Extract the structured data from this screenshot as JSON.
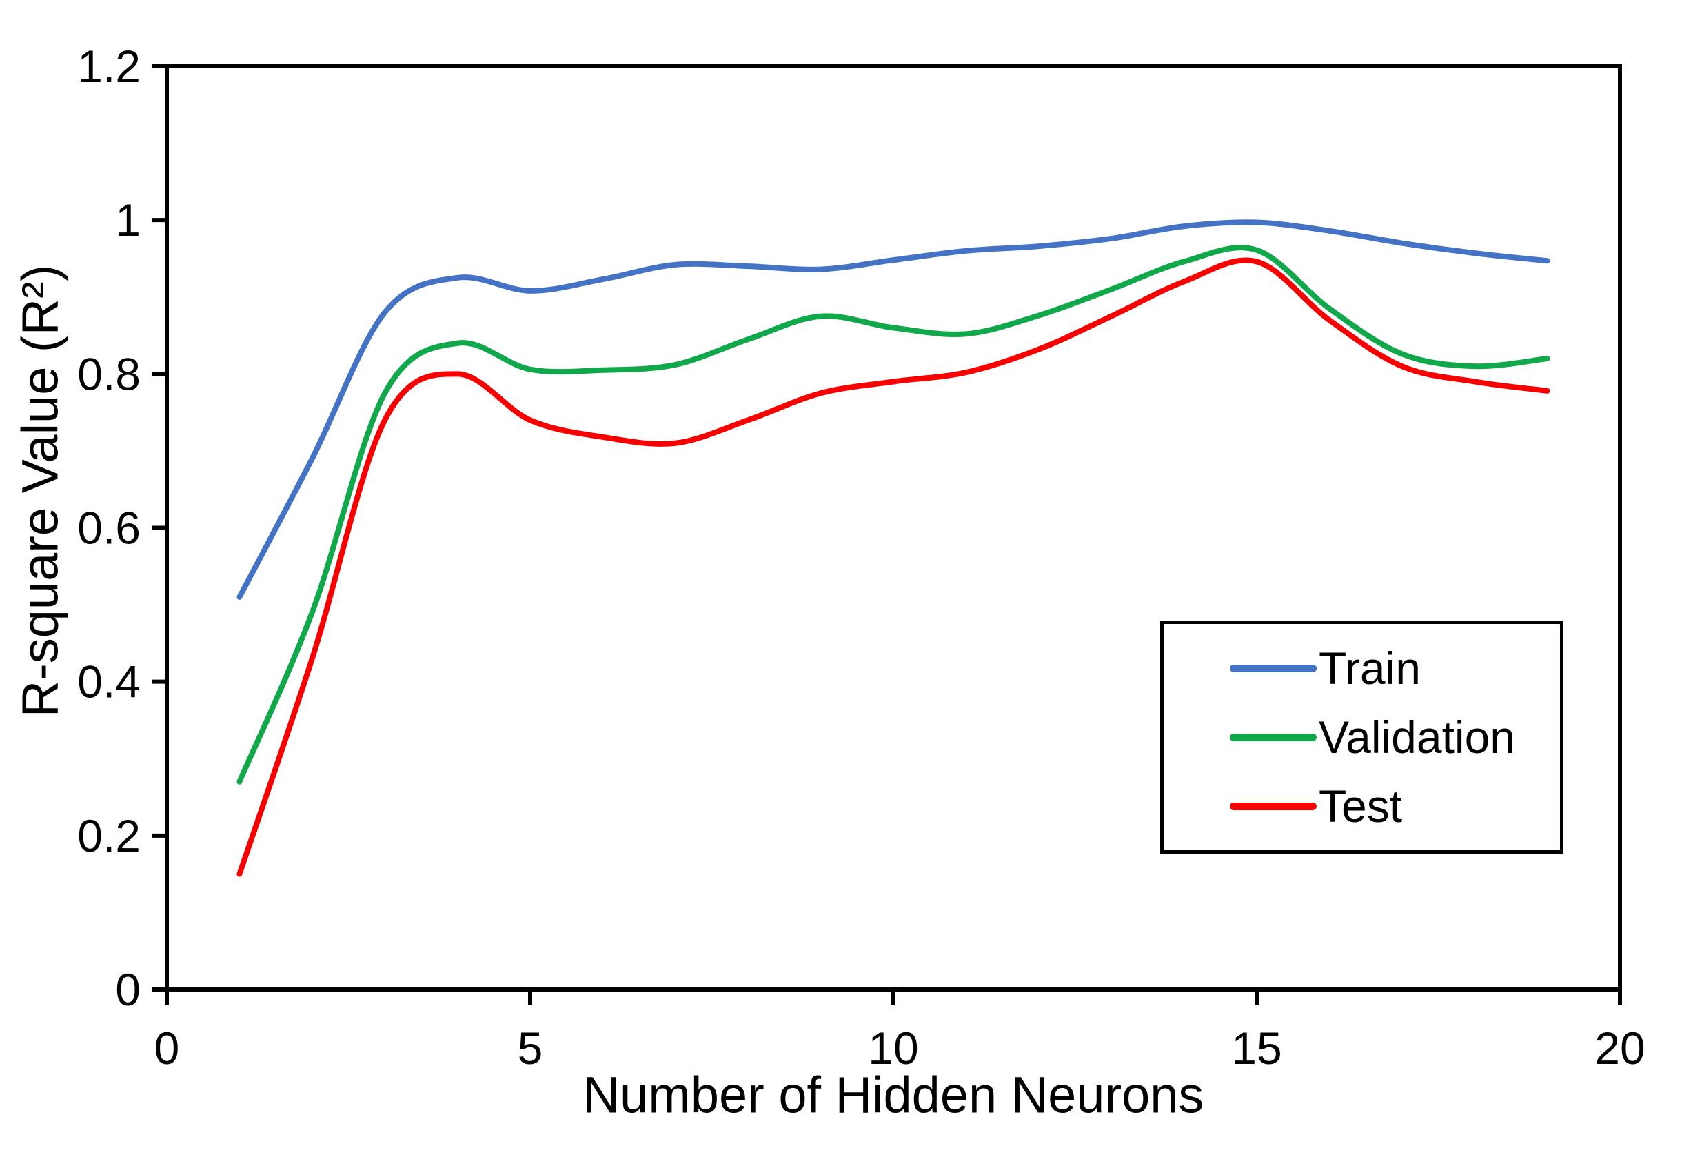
{
  "chart_data": {
    "type": "line",
    "title": "",
    "xlabel": "Number of Hidden Neurons",
    "ylabel": "R-square Value (R²)",
    "xlim": [
      0,
      20
    ],
    "ylim": [
      0,
      1.2
    ],
    "grid": false,
    "smooth": true,
    "legend_position": "inside-right",
    "background_color": "#FFFFFF",
    "axis_color": "#000000",
    "x_ticks": [
      {
        "v": 0,
        "label": "0"
      },
      {
        "v": 5,
        "label": "5"
      },
      {
        "v": 10,
        "label": "10"
      },
      {
        "v": 15,
        "label": "15"
      },
      {
        "v": 20,
        "label": "20"
      }
    ],
    "y_ticks": [
      {
        "v": 0,
        "label": "0"
      },
      {
        "v": 0.2,
        "label": "0.2"
      },
      {
        "v": 0.4,
        "label": "0.4"
      },
      {
        "v": 0.6,
        "label": "0.6"
      },
      {
        "v": 0.8,
        "label": "0.8"
      },
      {
        "v": 1,
        "label": "1"
      },
      {
        "v": 1.2,
        "label": "1.2"
      }
    ],
    "x": [
      1,
      2,
      3,
      4,
      5,
      6,
      7,
      8,
      9,
      10,
      11,
      12,
      13,
      14,
      15,
      16,
      17,
      18,
      19
    ],
    "series": [
      {
        "name": "Train",
        "color": "#4472C4",
        "values": [
          0.51,
          0.69,
          0.88,
          0.925,
          0.908,
          0.923,
          0.942,
          0.94,
          0.936,
          0.948,
          0.96,
          0.966,
          0.976,
          0.992,
          0.997,
          0.986,
          0.97,
          0.957,
          0.947
        ]
      },
      {
        "name": "Validation",
        "color": "#10A84A",
        "values": [
          0.27,
          0.49,
          0.775,
          0.84,
          0.806,
          0.805,
          0.812,
          0.845,
          0.875,
          0.86,
          0.852,
          0.876,
          0.91,
          0.946,
          0.961,
          0.885,
          0.826,
          0.81,
          0.82
        ]
      },
      {
        "name": "Test",
        "color": "#F80000",
        "values": [
          0.15,
          0.43,
          0.74,
          0.8,
          0.74,
          0.718,
          0.71,
          0.74,
          0.775,
          0.79,
          0.802,
          0.832,
          0.875,
          0.92,
          0.946,
          0.87,
          0.81,
          0.79,
          0.778
        ]
      }
    ]
  }
}
